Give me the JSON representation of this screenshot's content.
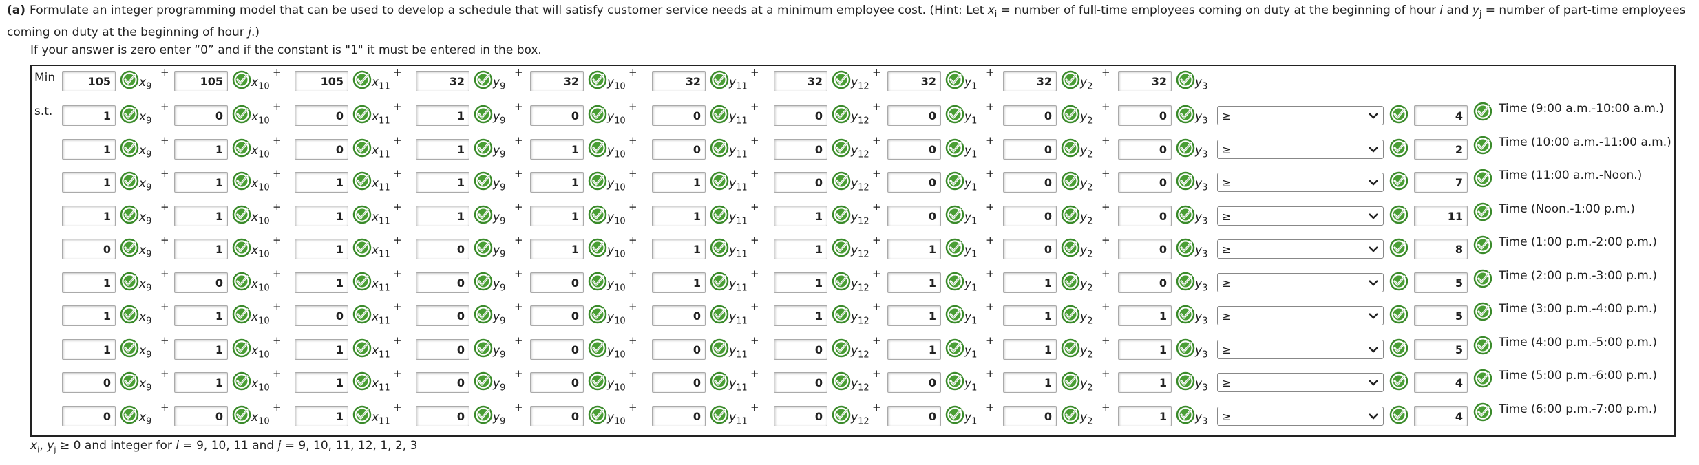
{
  "question": {
    "label": "(a)",
    "text": [
      {
        "text": "Formulate an integer programming model that can be used to develop a schedule that will satisfy customer service needs at a minimum employee cost. (Hint: Let ",
        "style": "normal"
      },
      {
        "text": "x",
        "style": "italic"
      },
      {
        "text": "i",
        "style": "subscript"
      },
      {
        "text": " = number of full-time employees coming on duty at the beginning of hour ",
        "style": "normal"
      },
      {
        "text": "i",
        "style": "italic"
      },
      {
        "text": " and ",
        "style": "normal"
      },
      {
        "text": "y",
        "style": "italic"
      },
      {
        "text": "j",
        "style": "subscript"
      },
      {
        "text": " = number of part-time employees coming on duty at the beginning of hour ",
        "style": "normal"
      },
      {
        "text": "j",
        "style": "italic"
      },
      {
        "text": ".)",
        "style": "normal"
      }
    ]
  },
  "instruction": "If your answer is zero enter “0” and if the constant is \"1\" it must be entered in the box.",
  "operator": "+",
  "variables": [
    {
      "base": "x",
      "sub": "9"
    },
    {
      "base": "x",
      "sub": "10"
    },
    {
      "base": "x",
      "sub": "11"
    },
    {
      "base": "y",
      "sub": "9"
    },
    {
      "base": "y",
      "sub": "10"
    },
    {
      "base": "y",
      "sub": "11"
    },
    {
      "base": "y",
      "sub": "12"
    },
    {
      "base": "y",
      "sub": "1"
    },
    {
      "base": "y",
      "sub": "2"
    },
    {
      "base": "y",
      "sub": "3"
    }
  ],
  "objective": {
    "label": "Min",
    "coefficients": [
      105,
      105,
      105,
      32,
      32,
      32,
      32,
      32,
      32,
      32
    ]
  },
  "constraints": {
    "label": "s.t.",
    "rows": [
      {
        "coefficients": [
          1,
          0,
          0,
          1,
          0,
          0,
          0,
          0,
          0,
          0
        ],
        "relation": "≥",
        "rhs": 4,
        "label": "Time (9:00 a.m.-10:00 a.m.)"
      },
      {
        "coefficients": [
          1,
          1,
          0,
          1,
          1,
          0,
          0,
          0,
          0,
          0
        ],
        "relation": "≥",
        "rhs": 2,
        "label": "Time (10:00 a.m.-11:00 a.m.)"
      },
      {
        "coefficients": [
          1,
          1,
          1,
          1,
          1,
          1,
          0,
          0,
          0,
          0
        ],
        "relation": "≥",
        "rhs": 7,
        "label": "Time (11:00 a.m.-Noon.)"
      },
      {
        "coefficients": [
          1,
          1,
          1,
          1,
          1,
          1,
          1,
          0,
          0,
          0
        ],
        "relation": "≥",
        "rhs": 11,
        "label": "Time (Noon.-1:00 p.m.)"
      },
      {
        "coefficients": [
          0,
          1,
          1,
          0,
          1,
          1,
          1,
          1,
          0,
          0
        ],
        "relation": "≥",
        "rhs": 8,
        "label": "Time (1:00 p.m.-2:00 p.m.)"
      },
      {
        "coefficients": [
          1,
          0,
          1,
          0,
          0,
          1,
          1,
          1,
          1,
          0
        ],
        "relation": "≥",
        "rhs": 5,
        "label": "Time (2:00 p.m.-3:00 p.m.)"
      },
      {
        "coefficients": [
          1,
          1,
          0,
          0,
          0,
          0,
          1,
          1,
          1,
          1
        ],
        "relation": "≥",
        "rhs": 5,
        "label": "Time (3:00 p.m.-4:00 p.m.)"
      },
      {
        "coefficients": [
          1,
          1,
          1,
          0,
          0,
          0,
          0,
          1,
          1,
          1
        ],
        "relation": "≥",
        "rhs": 5,
        "label": "Time (4:00 p.m.-5:00 p.m.)"
      },
      {
        "coefficients": [
          0,
          1,
          1,
          0,
          0,
          0,
          0,
          0,
          1,
          1
        ],
        "relation": "≥",
        "rhs": 4,
        "label": "Time (5:00 p.m.-6:00 p.m.)"
      },
      {
        "coefficients": [
          0,
          0,
          1,
          0,
          0,
          0,
          0,
          0,
          0,
          1
        ],
        "relation": "≥",
        "rhs": 4,
        "label": "Time (6:00 p.m.-7:00 p.m.)"
      }
    ]
  },
  "footer": [
    {
      "text": "x",
      "style": "italic"
    },
    {
      "text": "i",
      "style": "subscript"
    },
    {
      "text": ", ",
      "style": "normal"
    },
    {
      "text": "y",
      "style": "italic"
    },
    {
      "text": "j",
      "style": "subscript"
    },
    {
      "text": " ≥ 0 and integer for ",
      "style": "normal"
    },
    {
      "text": "i",
      "style": "italic"
    },
    {
      "text": " = 9, 10, 11 and ",
      "style": "normal"
    },
    {
      "text": "j",
      "style": "italic"
    },
    {
      "text": " = 9, 10, 11, 12, 1, 2, 3",
      "style": "normal"
    }
  ]
}
